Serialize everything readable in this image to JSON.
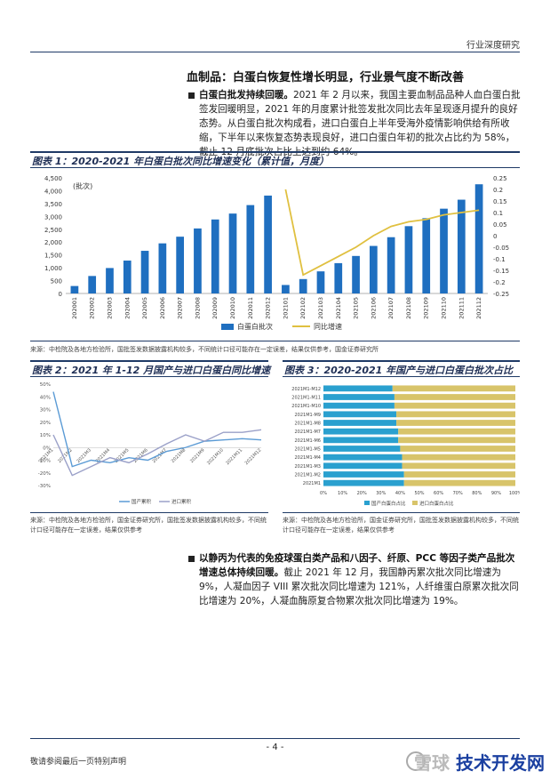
{
  "header": {
    "title": "行业深度研究"
  },
  "section": {
    "title": "血制品：白蛋白恢复性增长明显，行业景气度不断改善"
  },
  "para1": {
    "bold": "白蛋白批发持续回暖。",
    "text": "2021 年 2 月以来，我国主要血制品品种人血白蛋白批签发回暖明显，2021 年的月度累计批签发批次同比去年呈现逐月提升的良好态势。从白蛋白批次构成看，进口白蛋白上半年受海外疫情影响供给有所收缩，下半年以来恢复态势表现良好，进口白蛋白年初的批次占比约为 58%，截止 12 月底批次占比上达到约 64%。"
  },
  "fig1": {
    "title": "图表 1：2020-2021 年白蛋白批次同比增速变化（累计值，月度）",
    "source": "来源：中检院及各地方检验所，国批签发数据披露机构较多，不同统计口径可能存在一定误差，结果仅供参考，国金证券研究所"
  },
  "fig2": {
    "title": "图表 2：2021 年 1-12 月国产与进口白蛋白同比增速",
    "source": "来源：中检院及各地方检验所，国金证券研究所，国批签发数据披露机构较多，不同统计口径可能存在一定误差，结果仅供参考"
  },
  "fig3": {
    "title": "图表 3：2020-2021 年国产与进口白蛋白批次占比",
    "source": "来源：中检院及各地方检验所，国金证券研究所，国批签发数据披露机构较多，不同统计口径可能存在一定误差，结果仅供参考"
  },
  "para2": {
    "bold": "以静丙为代表的免疫球蛋白类产品和八因子、纤原、PCC 等因子类产品批次增速总体持续回暖。",
    "text": "截止 2021 年 12 月，我国静丙累次批次同比增速为 9%，人凝血因子 VIII 累次批次同比增速为 121%，人纤维蛋白原累次批次同比增速为 20%，人凝血酶原复合物累次批次同比增速为 19%。"
  },
  "footer": {
    "page": "- 4 -",
    "disclaimer": "敬请参阅最后一页特别声明",
    "watermark": "技术开发网",
    "watermark_faint": "雪球"
  },
  "chart_data": [
    {
      "type": "bar+line",
      "title": "图表 1：2020-2021 年白蛋白批次同比增速变化（累计值，月度）",
      "ylabel": "(批次)",
      "ylim": [
        0,
        4500
      ],
      "y2lim": [
        -0.25,
        0.25
      ],
      "yticks": [
        "4,500",
        "4,000",
        "3,500",
        "3,000",
        "2,500",
        "2,000",
        "1,500",
        "1,000",
        "500",
        "0"
      ],
      "y2ticks": [
        "0.25",
        "0.2",
        "0.15",
        "0.1",
        "0.05",
        "0",
        "-0.05",
        "-0.1",
        "-0.15",
        "-0.2",
        "-0.25"
      ],
      "categories": [
        "202001",
        "202002",
        "202003",
        "202004",
        "202005",
        "202006",
        "202007",
        "202008",
        "202009",
        "202010",
        "202011",
        "202012",
        "202101",
        "202102",
        "202103",
        "202104",
        "202105",
        "202106",
        "202107",
        "202108",
        "202109",
        "202110",
        "202111",
        "202112"
      ],
      "series": [
        {
          "name": "白蛋白批次",
          "type": "bar",
          "color": "#1f6fc0",
          "values": [
            290,
            680,
            990,
            1280,
            1660,
            1950,
            2210,
            2530,
            2880,
            3110,
            3440,
            3810,
            330,
            560,
            860,
            1180,
            1460,
            1850,
            2190,
            2620,
            2930,
            3300,
            3650,
            4250
          ]
        },
        {
          "name": "同比增速",
          "type": "line",
          "color": "#e0c040",
          "values": [
            null,
            null,
            null,
            null,
            null,
            null,
            null,
            null,
            null,
            null,
            null,
            null,
            0.2,
            -0.17,
            -0.13,
            -0.09,
            -0.05,
            0.0,
            0.04,
            0.06,
            0.07,
            0.09,
            0.1,
            0.11
          ]
        }
      ],
      "legend": [
        "白蛋白批次",
        "同比增速"
      ]
    },
    {
      "type": "line",
      "title": "图表 2：2021 年 1-12 月国产与进口白蛋白同比增速",
      "ylim": [
        -30,
        50
      ],
      "yticks": [
        "50%",
        "40%",
        "30%",
        "20%",
        "10%",
        "0%",
        "-10%",
        "-20%",
        "-30%"
      ],
      "categories": [
        "2021M1",
        "2021M2",
        "2021M3",
        "2021M4",
        "2021M5",
        "2021M6",
        "2021M7",
        "2021M8",
        "2021M9",
        "2021M10",
        "2021M11",
        "2021M12"
      ],
      "series": [
        {
          "name": "国产累积",
          "color": "#5b9bd5",
          "values": [
            44,
            -15,
            -10,
            -12,
            -8,
            -10,
            -3,
            0,
            5,
            6,
            7,
            6
          ]
        },
        {
          "name": "进口累积",
          "color": "#9aa0c8",
          "values": [
            10,
            -22,
            -15,
            -8,
            -12,
            -5,
            3,
            10,
            5,
            12,
            12,
            14
          ]
        }
      ],
      "legend": [
        "国产累积",
        "进口累积"
      ]
    },
    {
      "type": "stacked-bar-horizontal",
      "title": "图表 3：2020-2021 年国产与进口白蛋白批次占比",
      "xticks": [
        "0%",
        "10%",
        "20%",
        "30%",
        "40%",
        "50%",
        "60%",
        "70%",
        "80%",
        "90%",
        "100%"
      ],
      "categories": [
        "2021M1-M12",
        "2021M1-M11",
        "2021M1-M10",
        "2021M1-M9",
        "2021M1-M8",
        "2021M1-M7",
        "2021M1-M6",
        "2021M1-M5",
        "2021M1-M4",
        "2021M1-M3",
        "2021M1-M2",
        "2021M1"
      ],
      "series": [
        {
          "name": "国产白蛋白占比",
          "color": "#2aa0cf",
          "values": [
            36,
            37,
            37,
            38,
            38,
            39,
            39,
            40,
            41,
            41,
            42,
            42
          ]
        },
        {
          "name": "进口白蛋白占比",
          "color": "#d8c46a",
          "values": [
            64,
            63,
            63,
            62,
            62,
            61,
            61,
            60,
            59,
            59,
            58,
            58
          ]
        }
      ],
      "legend": [
        "国产白蛋白占比",
        "进口白蛋白占比"
      ]
    }
  ]
}
